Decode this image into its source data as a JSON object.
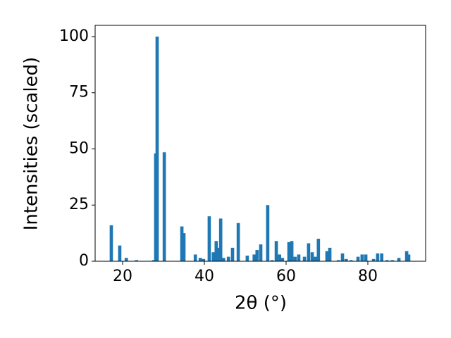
{
  "chart_data": {
    "type": "bar",
    "xlabel": "2θ (°)",
    "ylabel": "Intensities (scaled)",
    "x": [
      17.24,
      19.3,
      20.9,
      23.4,
      27.6,
      28.1,
      28.45,
      30.2,
      34.5,
      35.0,
      37.8,
      39.0,
      39.8,
      41.2,
      42.2,
      42.9,
      43.4,
      44.0,
      44.7,
      45.9,
      46.9,
      48.3,
      50.5,
      52.2,
      52.9,
      53.8,
      55.5,
      56.6,
      57.6,
      58.4,
      59.1,
      60.7,
      61.4,
      62.2,
      63.1,
      64.5,
      65.5,
      66.4,
      67.2,
      67.9,
      70.0,
      70.7,
      72.8,
      73.8,
      74.7,
      75.9,
      77.6,
      78.6,
      79.5,
      81.4,
      82.4,
      83.4,
      84.7,
      86.0,
      87.6,
      89.5,
      90.0
    ],
    "values": [
      16,
      7,
      1.5,
      0.5,
      0.5,
      48,
      100,
      48.5,
      15.5,
      12.5,
      3,
      1.5,
      1,
      20,
      4,
      9,
      6,
      19,
      1.5,
      2,
      6,
      17,
      2.5,
      3,
      5,
      7.5,
      25,
      0.5,
      9,
      3,
      1.5,
      8.5,
      9,
      2,
      3,
      2,
      8,
      4,
      2,
      10,
      4.5,
      6,
      0.5,
      3.5,
      1,
      0.5,
      2,
      3,
      3,
      1,
      3.5,
      3.5,
      0.5,
      0.5,
      1.5,
      4.5,
      3
    ],
    "color": "#1f77b4",
    "xlim": [
      13.28,
      94.14
    ],
    "xticks": [
      20,
      40,
      60,
      80
    ],
    "ylim": [
      0,
      105
    ],
    "yticks": [
      0,
      25,
      50,
      75,
      100
    ],
    "grid": false
  }
}
